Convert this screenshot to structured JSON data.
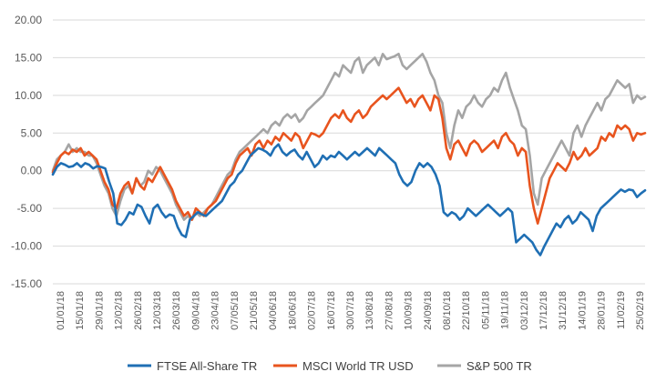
{
  "chart_data": {
    "type": "line",
    "ylim": [
      -15,
      20
    ],
    "y_ticks": [
      "20.00",
      "15.00",
      "10.00",
      "5.00",
      "0.00",
      "-5.00",
      "-10.00",
      "-15.00"
    ],
    "y_tick_values": [
      20,
      15,
      10,
      5,
      0,
      -5,
      -10,
      -15
    ],
    "grid": "horizontal",
    "legend_position": "bottom",
    "x_ticks": [
      "01/01/18",
      "15/01/18",
      "29/01/18",
      "12/02/18",
      "26/02/18",
      "12/03/18",
      "26/03/18",
      "09/04/18",
      "23/04/18",
      "07/05/18",
      "21/05/18",
      "04/06/18",
      "18/06/18",
      "02/07/18",
      "16/07/18",
      "30/07/18",
      "13/08/18",
      "27/08/18",
      "10/09/18",
      "24/09/18",
      "08/10/18",
      "22/10/18",
      "05/11/18",
      "19/11/18",
      "03/12/18",
      "17/12/18",
      "31/12/18",
      "14/01/19",
      "28/01/19",
      "11/02/19",
      "25/02/19"
    ],
    "series": [
      {
        "name": "FTSE All-Share TR",
        "color": "#1f6fb4",
        "values": [
          -0.5,
          0.5,
          1.0,
          0.8,
          0.5,
          0.6,
          1.0,
          0.5,
          1.0,
          0.8,
          0.3,
          0.6,
          0.5,
          0.3,
          -1.5,
          -3.0,
          -7.0,
          -7.2,
          -6.5,
          -5.5,
          -5.8,
          -4.5,
          -4.8,
          -6.0,
          -7.0,
          -5.0,
          -4.5,
          -5.5,
          -6.2,
          -5.8,
          -6.0,
          -7.5,
          -8.5,
          -8.8,
          -6.5,
          -6.0,
          -5.5,
          -5.8,
          -6.0,
          -5.5,
          -5.0,
          -4.5,
          -4.0,
          -3.0,
          -2.0,
          -1.5,
          -0.5,
          0.0,
          1.0,
          2.0,
          2.5,
          3.0,
          2.8,
          2.5,
          2.0,
          3.0,
          3.5,
          2.5,
          2.0,
          2.5,
          2.8,
          2.0,
          1.5,
          2.5,
          1.5,
          0.5,
          1.0,
          2.0,
          1.5,
          2.0,
          1.8,
          2.5,
          2.0,
          1.5,
          2.0,
          2.5,
          2.0,
          2.5,
          3.0,
          2.5,
          2.0,
          3.0,
          2.5,
          2.0,
          1.5,
          1.0,
          -0.5,
          -1.5,
          -2.0,
          -1.5,
          0.0,
          1.0,
          0.5,
          1.0,
          0.5,
          -0.5,
          -2.0,
          -5.5,
          -6.0,
          -5.5,
          -5.8,
          -6.5,
          -6.0,
          -5.0,
          -5.5,
          -6.0,
          -5.5,
          -5.0,
          -4.5,
          -5.0,
          -5.5,
          -6.0,
          -5.5,
          -5.0,
          -5.5,
          -9.5,
          -9.0,
          -8.5,
          -9.0,
          -9.5,
          -10.5,
          -11.2,
          -10.0,
          -9.0,
          -8.0,
          -7.0,
          -7.5,
          -6.5,
          -6.0,
          -7.0,
          -6.5,
          -5.5,
          -6.0,
          -6.5,
          -8.0,
          -6.0,
          -5.0,
          -4.5,
          -4.0,
          -3.5,
          -3.0,
          -2.5,
          -2.8,
          -2.5,
          -2.6,
          -3.5,
          -3.0,
          -2.6
        ]
      },
      {
        "name": "MSCI World TR USD",
        "color": "#e8541e",
        "values": [
          -0.2,
          1.0,
          2.0,
          2.5,
          2.2,
          2.8,
          2.5,
          3.0,
          2.0,
          2.5,
          2.0,
          1.5,
          0.0,
          -1.5,
          -2.5,
          -4.5,
          -5.0,
          -3.0,
          -2.0,
          -1.5,
          -3.0,
          -1.0,
          -2.0,
          -2.5,
          -1.0,
          -1.5,
          -0.5,
          0.5,
          -0.5,
          -1.5,
          -2.5,
          -4.0,
          -5.0,
          -6.0,
          -5.5,
          -6.5,
          -5.0,
          -5.5,
          -6.0,
          -5.0,
          -4.5,
          -4.0,
          -3.0,
          -2.0,
          -1.0,
          -0.5,
          1.0,
          2.0,
          2.5,
          3.0,
          2.0,
          3.5,
          4.0,
          3.0,
          4.0,
          3.5,
          4.5,
          4.0,
          5.0,
          4.5,
          4.0,
          5.0,
          4.5,
          3.0,
          4.0,
          5.0,
          4.8,
          4.5,
          5.0,
          6.0,
          7.0,
          7.5,
          7.0,
          8.0,
          7.0,
          6.5,
          7.5,
          8.0,
          7.0,
          7.5,
          8.5,
          9.0,
          9.5,
          10.0,
          9.5,
          10.0,
          10.5,
          11.0,
          10.0,
          9.0,
          9.5,
          8.5,
          9.5,
          10.0,
          9.0,
          8.0,
          10.0,
          9.5,
          7.0,
          3.0,
          1.5,
          3.5,
          4.0,
          3.0,
          2.0,
          3.5,
          4.0,
          3.5,
          2.5,
          3.0,
          3.5,
          4.0,
          3.0,
          4.5,
          5.0,
          4.0,
          3.5,
          2.0,
          3.0,
          2.5,
          -2.0,
          -5.0,
          -7.0,
          -5.0,
          -3.0,
          -1.0,
          0.0,
          1.0,
          0.5,
          0.0,
          1.0,
          2.5,
          1.5,
          2.0,
          3.0,
          2.0,
          2.5,
          3.0,
          4.5,
          4.0,
          5.0,
          4.5,
          6.0,
          5.5,
          6.0,
          5.5,
          4.0,
          5.0,
          4.8,
          5.0
        ]
      },
      {
        "name": "S&P 500 TR",
        "color": "#a5a5a5",
        "values": [
          0.0,
          1.5,
          2.0,
          2.5,
          3.5,
          2.5,
          3.0,
          2.5,
          2.5,
          2.0,
          2.0,
          1.0,
          -0.5,
          -2.0,
          -3.0,
          -5.0,
          -6.0,
          -4.0,
          -2.5,
          -2.0,
          -3.0,
          -1.0,
          -2.0,
          -1.5,
          0.0,
          -0.5,
          0.5,
          0.0,
          -1.0,
          -2.0,
          -3.0,
          -4.5,
          -5.5,
          -6.5,
          -6.0,
          -6.5,
          -5.5,
          -6.0,
          -5.5,
          -5.0,
          -4.5,
          -3.5,
          -2.5,
          -1.5,
          -0.5,
          0.0,
          1.5,
          2.5,
          3.0,
          3.5,
          4.0,
          4.5,
          5.0,
          5.5,
          5.0,
          6.0,
          6.5,
          6.0,
          7.0,
          7.5,
          7.0,
          7.5,
          6.5,
          7.0,
          8.0,
          8.5,
          9.0,
          9.5,
          10.0,
          11.0,
          12.0,
          13.0,
          12.5,
          14.0,
          13.5,
          13.0,
          14.5,
          15.0,
          13.0,
          14.0,
          14.5,
          15.0,
          14.0,
          15.5,
          14.8,
          15.0,
          15.2,
          15.5,
          14.0,
          13.5,
          14.0,
          14.5,
          15.0,
          15.5,
          14.5,
          13.0,
          12.0,
          10.0,
          9.0,
          5.0,
          3.0,
          6.0,
          8.0,
          7.0,
          8.5,
          9.0,
          10.0,
          9.0,
          8.5,
          9.5,
          10.0,
          11.0,
          10.5,
          12.0,
          13.0,
          11.0,
          9.5,
          8.0,
          6.0,
          5.5,
          2.0,
          -3.0,
          -4.5,
          -1.0,
          0.0,
          1.0,
          2.0,
          3.0,
          4.0,
          3.0,
          2.0,
          5.0,
          6.0,
          4.5,
          6.0,
          7.0,
          8.0,
          9.0,
          8.0,
          9.5,
          10.0,
          11.0,
          12.0,
          11.5,
          11.0,
          11.5,
          9.0,
          10.0,
          9.5,
          9.8
        ]
      }
    ]
  }
}
